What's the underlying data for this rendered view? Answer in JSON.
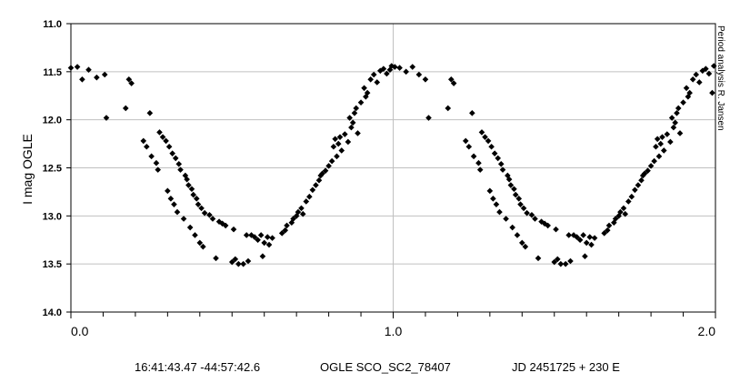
{
  "chart_data": {
    "type": "scatter",
    "ylabel": "I mag OGLE",
    "xlim": [
      0.0,
      2.0
    ],
    "ylim": [
      11.0,
      14.0
    ],
    "y_inverted": true,
    "x_tick_labels": [
      "0.0",
      "1.0",
      "2.0"
    ],
    "y_tick_labels": [
      "11.0",
      "11.5",
      "12.0",
      "12.5",
      "13.0",
      "13.5",
      "14.0"
    ],
    "grid": true,
    "marker": "diamond",
    "marker_color": "#000000",
    "vertical_annotation": "Period analysis R. Jansen",
    "footer": {
      "coords": "16:41:43.47 -44:57:42.6",
      "star": "OGLE SCO_SC2_78407",
      "ephemeris": "JD 2451725 + 230 E"
    },
    "series": [
      {
        "points": [
          [
            0.0,
            11.46
          ],
          [
            0.02,
            11.45
          ],
          [
            0.035,
            11.58
          ],
          [
            0.055,
            11.48
          ],
          [
            0.08,
            11.56
          ],
          [
            0.105,
            11.53
          ],
          [
            0.11,
            11.98
          ],
          [
            0.17,
            11.88
          ],
          [
            0.18,
            11.58
          ],
          [
            0.188,
            11.62
          ],
          [
            0.225,
            12.22
          ],
          [
            0.235,
            12.28
          ],
          [
            0.245,
            11.93
          ],
          [
            0.25,
            12.38
          ],
          [
            0.265,
            12.45
          ],
          [
            0.27,
            12.52
          ],
          [
            0.275,
            12.13
          ],
          [
            0.285,
            12.18
          ],
          [
            0.295,
            12.22
          ],
          [
            0.3,
            12.74
          ],
          [
            0.305,
            12.28
          ],
          [
            0.31,
            12.82
          ],
          [
            0.315,
            12.35
          ],
          [
            0.32,
            12.88
          ],
          [
            0.325,
            12.4
          ],
          [
            0.33,
            12.96
          ],
          [
            0.335,
            12.46
          ],
          [
            0.34,
            12.52
          ],
          [
            0.35,
            13.03
          ],
          [
            0.355,
            12.58
          ],
          [
            0.36,
            12.62
          ],
          [
            0.365,
            12.68
          ],
          [
            0.37,
            13.12
          ],
          [
            0.375,
            12.72
          ],
          [
            0.38,
            12.78
          ],
          [
            0.385,
            13.2
          ],
          [
            0.39,
            12.82
          ],
          [
            0.395,
            12.88
          ],
          [
            0.4,
            13.28
          ],
          [
            0.405,
            12.92
          ],
          [
            0.41,
            13.32
          ],
          [
            0.415,
            12.97
          ],
          [
            0.43,
            12.99
          ],
          [
            0.44,
            13.03
          ],
          [
            0.45,
            13.44
          ],
          [
            0.46,
            13.06
          ],
          [
            0.47,
            13.08
          ],
          [
            0.48,
            13.1
          ],
          [
            0.5,
            13.48
          ],
          [
            0.505,
            13.14
          ],
          [
            0.51,
            13.45
          ],
          [
            0.52,
            13.5
          ],
          [
            0.535,
            13.5
          ],
          [
            0.545,
            13.2
          ],
          [
            0.55,
            13.47
          ],
          [
            0.56,
            13.2
          ],
          [
            0.57,
            13.22
          ],
          [
            0.58,
            13.25
          ],
          [
            0.59,
            13.2
          ],
          [
            0.595,
            13.42
          ],
          [
            0.6,
            13.28
          ],
          [
            0.61,
            13.22
          ],
          [
            0.615,
            13.3
          ],
          [
            0.625,
            13.23
          ],
          [
            0.655,
            13.18
          ],
          [
            0.665,
            13.15
          ],
          [
            0.67,
            13.1
          ],
          [
            0.685,
            13.07
          ],
          [
            0.69,
            13.03
          ],
          [
            0.7,
            13
          ],
          [
            0.705,
            12.96
          ],
          [
            0.715,
            12.92
          ],
          [
            0.72,
            12.98
          ],
          [
            0.73,
            12.85
          ],
          [
            0.74,
            12.8
          ],
          [
            0.75,
            12.73
          ],
          [
            0.76,
            12.68
          ],
          [
            0.77,
            12.63
          ],
          [
            0.775,
            12.58
          ],
          [
            0.78,
            12.56
          ],
          [
            0.79,
            12.53
          ],
          [
            0.8,
            12.48
          ],
          [
            0.81,
            12.43
          ],
          [
            0.815,
            12.28
          ],
          [
            0.82,
            12.2
          ],
          [
            0.825,
            12.38
          ],
          [
            0.83,
            12.25
          ],
          [
            0.835,
            12.18
          ],
          [
            0.84,
            12.32
          ],
          [
            0.85,
            12.15
          ],
          [
            0.86,
            12.23
          ],
          [
            0.865,
            11.98
          ],
          [
            0.87,
            12.08
          ],
          [
            0.875,
            12.03
          ],
          [
            0.88,
            11.93
          ],
          [
            0.885,
            11.88
          ],
          [
            0.89,
            12.14
          ],
          [
            0.9,
            11.82
          ],
          [
            0.91,
            11.67
          ],
          [
            0.915,
            11.76
          ],
          [
            0.92,
            11.72
          ],
          [
            0.93,
            11.58
          ],
          [
            0.94,
            11.53
          ],
          [
            0.95,
            11.61
          ],
          [
            0.96,
            11.49
          ],
          [
            0.97,
            11.47
          ],
          [
            0.98,
            11.52
          ],
          [
            0.99,
            11.48
          ],
          [
            0.995,
            11.44
          ],
          [
            1.005,
            11.45
          ],
          [
            1.02,
            11.46
          ],
          [
            1.04,
            11.5
          ],
          [
            1.06,
            11.45
          ],
          [
            1.08,
            11.53
          ],
          [
            1.1,
            11.58
          ],
          [
            1.11,
            11.98
          ],
          [
            1.17,
            11.88
          ],
          [
            1.18,
            11.58
          ],
          [
            1.188,
            11.62
          ],
          [
            1.225,
            12.22
          ],
          [
            1.235,
            12.28
          ],
          [
            1.245,
            11.93
          ],
          [
            1.25,
            12.38
          ],
          [
            1.265,
            12.45
          ],
          [
            1.27,
            12.52
          ],
          [
            1.275,
            12.13
          ],
          [
            1.285,
            12.18
          ],
          [
            1.295,
            12.22
          ],
          [
            1.3,
            12.74
          ],
          [
            1.305,
            12.28
          ],
          [
            1.31,
            12.82
          ],
          [
            1.315,
            12.35
          ],
          [
            1.32,
            12.88
          ],
          [
            1.325,
            12.4
          ],
          [
            1.33,
            12.96
          ],
          [
            1.335,
            12.46
          ],
          [
            1.34,
            12.52
          ],
          [
            1.35,
            13.03
          ],
          [
            1.355,
            12.58
          ],
          [
            1.36,
            12.62
          ],
          [
            1.365,
            12.68
          ],
          [
            1.37,
            13.12
          ],
          [
            1.375,
            12.72
          ],
          [
            1.38,
            12.78
          ],
          [
            1.385,
            13.2
          ],
          [
            1.39,
            12.82
          ],
          [
            1.395,
            12.88
          ],
          [
            1.4,
            13.28
          ],
          [
            1.405,
            12.92
          ],
          [
            1.41,
            13.32
          ],
          [
            1.415,
            12.97
          ],
          [
            1.43,
            12.99
          ],
          [
            1.44,
            13.03
          ],
          [
            1.45,
            13.44
          ],
          [
            1.46,
            13.06
          ],
          [
            1.47,
            13.08
          ],
          [
            1.48,
            13.1
          ],
          [
            1.5,
            13.48
          ],
          [
            1.505,
            13.14
          ],
          [
            1.51,
            13.45
          ],
          [
            1.52,
            13.5
          ],
          [
            1.535,
            13.5
          ],
          [
            1.545,
            13.2
          ],
          [
            1.55,
            13.47
          ],
          [
            1.56,
            13.2
          ],
          [
            1.57,
            13.22
          ],
          [
            1.58,
            13.25
          ],
          [
            1.59,
            13.2
          ],
          [
            1.595,
            13.42
          ],
          [
            1.6,
            13.28
          ],
          [
            1.61,
            13.22
          ],
          [
            1.615,
            13.3
          ],
          [
            1.625,
            13.23
          ],
          [
            1.655,
            13.18
          ],
          [
            1.665,
            13.15
          ],
          [
            1.67,
            13.1
          ],
          [
            1.685,
            13.07
          ],
          [
            1.69,
            13.03
          ],
          [
            1.7,
            13
          ],
          [
            1.705,
            12.96
          ],
          [
            1.715,
            12.92
          ],
          [
            1.72,
            12.98
          ],
          [
            1.73,
            12.85
          ],
          [
            1.74,
            12.8
          ],
          [
            1.75,
            12.73
          ],
          [
            1.76,
            12.68
          ],
          [
            1.77,
            12.63
          ],
          [
            1.775,
            12.58
          ],
          [
            1.78,
            12.56
          ],
          [
            1.79,
            12.53
          ],
          [
            1.8,
            12.48
          ],
          [
            1.81,
            12.43
          ],
          [
            1.815,
            12.28
          ],
          [
            1.82,
            12.2
          ],
          [
            1.825,
            12.38
          ],
          [
            1.83,
            12.25
          ],
          [
            1.835,
            12.18
          ],
          [
            1.84,
            12.32
          ],
          [
            1.85,
            12.15
          ],
          [
            1.86,
            12.23
          ],
          [
            1.865,
            11.98
          ],
          [
            1.87,
            12.08
          ],
          [
            1.875,
            12.03
          ],
          [
            1.88,
            11.93
          ],
          [
            1.885,
            11.88
          ],
          [
            1.89,
            12.14
          ],
          [
            1.9,
            11.82
          ],
          [
            1.91,
            11.67
          ],
          [
            1.915,
            11.76
          ],
          [
            1.92,
            11.72
          ],
          [
            1.93,
            11.58
          ],
          [
            1.94,
            11.53
          ],
          [
            1.95,
            11.61
          ],
          [
            1.96,
            11.49
          ],
          [
            1.97,
            11.47
          ],
          [
            1.98,
            11.52
          ],
          [
            1.99,
            11.72
          ],
          [
            1.995,
            11.44
          ]
        ]
      }
    ]
  }
}
